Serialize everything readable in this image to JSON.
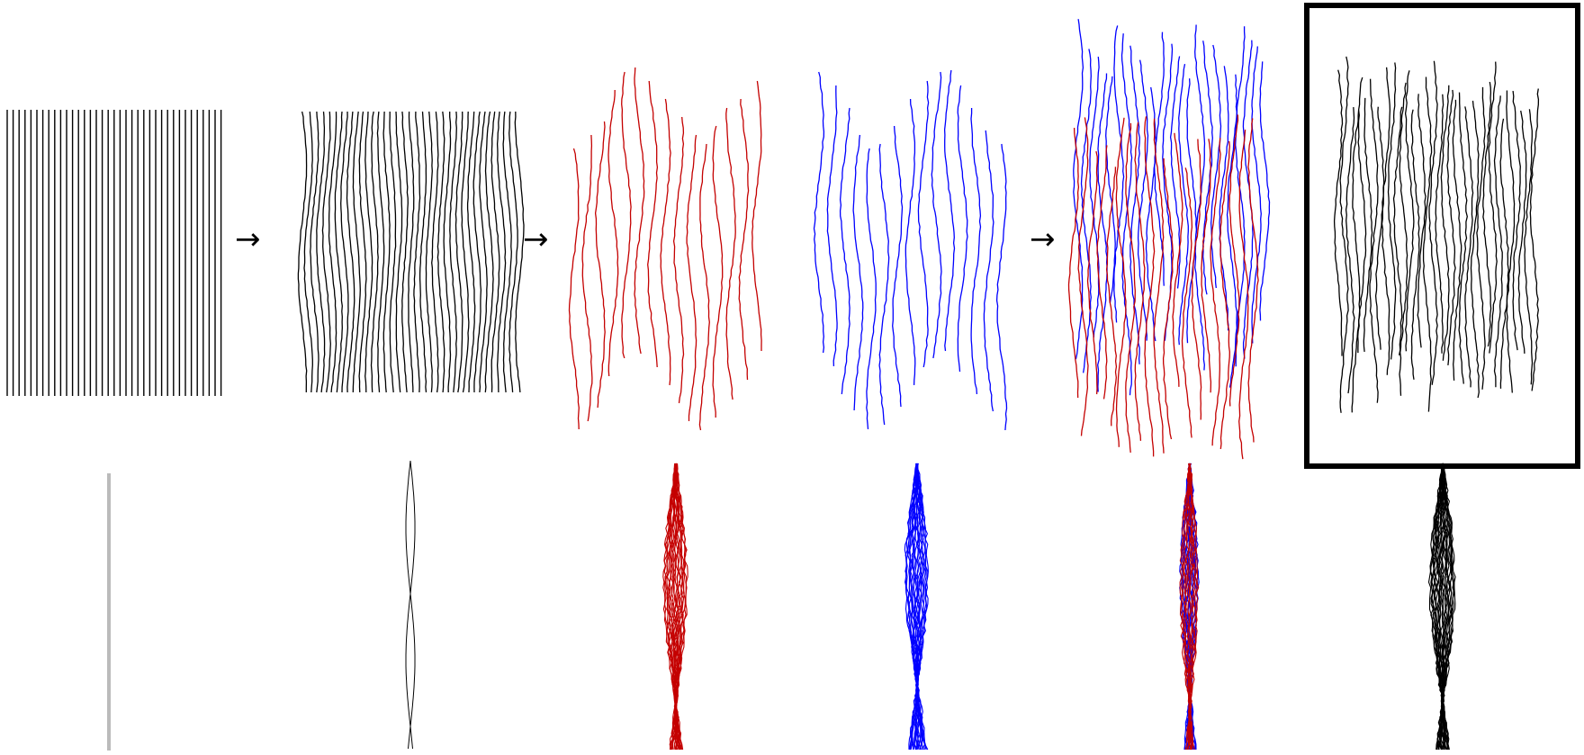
{
  "arrows": [
    "→",
    "→",
    "→"
  ],
  "colors": {
    "line": "#000000",
    "red": "#c40000",
    "blue": "#0000ff",
    "guide": "#bbbbbb",
    "frame": "#000000"
  },
  "panels": [
    {
      "id": "straight-lines",
      "style": "straight",
      "color": "line"
    },
    {
      "id": "wavy-lines",
      "style": "wavy",
      "color": "line"
    },
    {
      "id": "red-fibers",
      "style": "fibers",
      "color": "red"
    },
    {
      "id": "blue-fibers",
      "style": "fibers",
      "color": "blue"
    },
    {
      "id": "overlay-fibers",
      "style": "overlay",
      "color": "red+blue"
    },
    {
      "id": "result-fibers",
      "style": "fibers",
      "color": "line",
      "highlighted": true
    }
  ],
  "profiles": [
    {
      "id": "straight-profile",
      "style": "bar",
      "color": "guide"
    },
    {
      "id": "wavy-profile",
      "style": "twist",
      "color": "line"
    },
    {
      "id": "red-profile",
      "style": "bundle",
      "color": "red"
    },
    {
      "id": "blue-profile",
      "style": "bundle",
      "color": "blue"
    },
    {
      "id": "overlay-profile",
      "style": "bundle",
      "color": "red+blue"
    },
    {
      "id": "result-profile",
      "style": "bundle",
      "color": "line"
    }
  ]
}
